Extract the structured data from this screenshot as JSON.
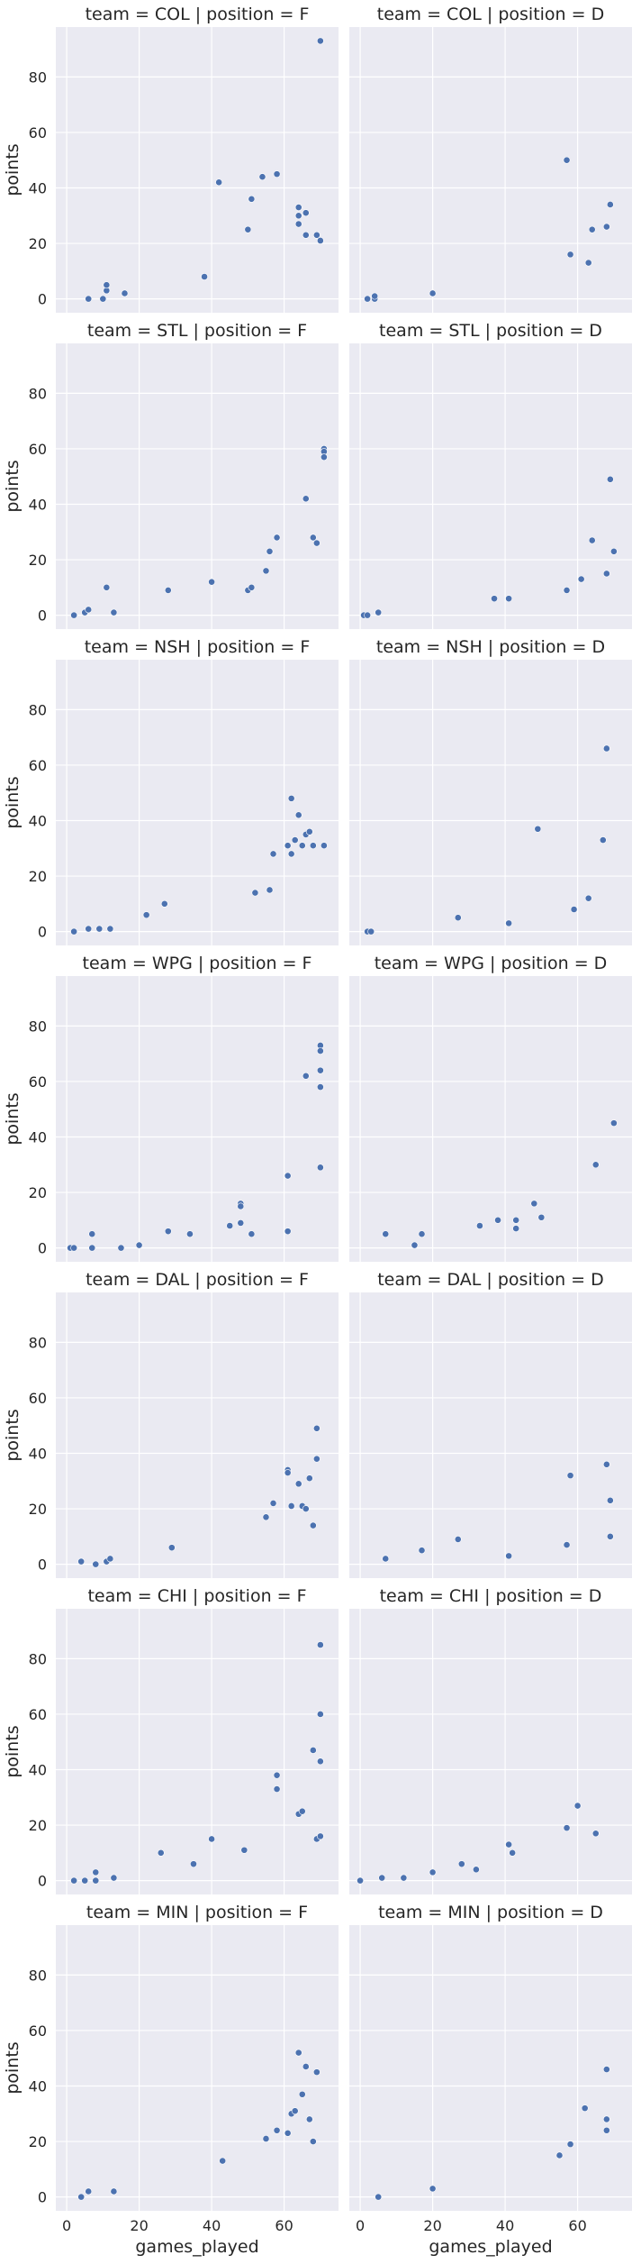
{
  "chart_data": {
    "type": "scatter",
    "xlabel": "games_played",
    "ylabel": "points",
    "xlim": [
      -3,
      75
    ],
    "ylim": [
      -5,
      98
    ],
    "xticks": [
      0,
      20,
      40,
      60
    ],
    "yticks": [
      0,
      20,
      40,
      60,
      80
    ],
    "grid": true,
    "colors": {
      "point": "#4c72b0",
      "panel": "#eaeaf2",
      "grid": "#ffffff"
    },
    "panels": [
      {
        "title": "team = COL | position = F",
        "points": [
          [
            6,
            0
          ],
          [
            10,
            0
          ],
          [
            11,
            3
          ],
          [
            11,
            5
          ],
          [
            16,
            2
          ],
          [
            38,
            8
          ],
          [
            42,
            42
          ],
          [
            50,
            25
          ],
          [
            51,
            36
          ],
          [
            54,
            44
          ],
          [
            58,
            45
          ],
          [
            64,
            33
          ],
          [
            64,
            30
          ],
          [
            64,
            27
          ],
          [
            66,
            31
          ],
          [
            66,
            23
          ],
          [
            69,
            23
          ],
          [
            70,
            93
          ],
          [
            70,
            21
          ]
        ]
      },
      {
        "title": "team = COL | position = D",
        "points": [
          [
            2,
            0
          ],
          [
            4,
            0
          ],
          [
            4,
            1
          ],
          [
            20,
            2
          ],
          [
            57,
            50
          ],
          [
            58,
            16
          ],
          [
            63,
            13
          ],
          [
            64,
            25
          ],
          [
            68,
            26
          ],
          [
            69,
            34
          ]
        ]
      },
      {
        "title": "team = STL | position = F",
        "points": [
          [
            2,
            0
          ],
          [
            5,
            1
          ],
          [
            6,
            2
          ],
          [
            11,
            10
          ],
          [
            13,
            1
          ],
          [
            28,
            9
          ],
          [
            40,
            12
          ],
          [
            50,
            9
          ],
          [
            51,
            10
          ],
          [
            55,
            16
          ],
          [
            56,
            23
          ],
          [
            58,
            28
          ],
          [
            66,
            42
          ],
          [
            68,
            28
          ],
          [
            69,
            26
          ],
          [
            71,
            60
          ],
          [
            71,
            59
          ],
          [
            71,
            57
          ]
        ]
      },
      {
        "title": "team = STL | position = D",
        "points": [
          [
            1,
            0
          ],
          [
            2,
            0
          ],
          [
            5,
            1
          ],
          [
            37,
            6
          ],
          [
            41,
            6
          ],
          [
            57,
            9
          ],
          [
            61,
            13
          ],
          [
            64,
            27
          ],
          [
            68,
            15
          ],
          [
            69,
            49
          ],
          [
            70,
            23
          ]
        ]
      },
      {
        "title": "team = NSH | position = F",
        "points": [
          [
            2,
            0
          ],
          [
            6,
            1
          ],
          [
            9,
            1
          ],
          [
            12,
            1
          ],
          [
            22,
            6
          ],
          [
            27,
            10
          ],
          [
            52,
            14
          ],
          [
            56,
            15
          ],
          [
            57,
            28
          ],
          [
            61,
            31
          ],
          [
            62,
            48
          ],
          [
            62,
            28
          ],
          [
            63,
            33
          ],
          [
            64,
            42
          ],
          [
            65,
            31
          ],
          [
            66,
            35
          ],
          [
            67,
            36
          ],
          [
            68,
            31
          ],
          [
            71,
            31
          ]
        ]
      },
      {
        "title": "team = NSH | position = D",
        "points": [
          [
            2,
            0
          ],
          [
            3,
            0
          ],
          [
            27,
            5
          ],
          [
            41,
            3
          ],
          [
            49,
            37
          ],
          [
            59,
            8
          ],
          [
            63,
            12
          ],
          [
            67,
            33
          ],
          [
            68,
            66
          ]
        ]
      },
      {
        "title": "team = WPG | position = F",
        "points": [
          [
            1,
            0
          ],
          [
            2,
            0
          ],
          [
            7,
            5
          ],
          [
            7,
            0
          ],
          [
            15,
            0
          ],
          [
            20,
            1
          ],
          [
            28,
            6
          ],
          [
            34,
            5
          ],
          [
            45,
            8
          ],
          [
            48,
            16
          ],
          [
            48,
            15
          ],
          [
            48,
            9
          ],
          [
            51,
            5
          ],
          [
            61,
            26
          ],
          [
            61,
            6
          ],
          [
            66,
            62
          ],
          [
            70,
            73
          ],
          [
            70,
            71
          ],
          [
            70,
            64
          ],
          [
            70,
            58
          ],
          [
            70,
            29
          ]
        ]
      },
      {
        "title": "team = WPG | position = D",
        "points": [
          [
            7,
            5
          ],
          [
            15,
            1
          ],
          [
            17,
            5
          ],
          [
            33,
            8
          ],
          [
            38,
            10
          ],
          [
            43,
            10
          ],
          [
            43,
            7
          ],
          [
            48,
            16
          ],
          [
            50,
            11
          ],
          [
            65,
            30
          ],
          [
            70,
            45
          ]
        ]
      },
      {
        "title": "team = DAL | position = F",
        "points": [
          [
            4,
            1
          ],
          [
            8,
            0
          ],
          [
            11,
            1
          ],
          [
            12,
            2
          ],
          [
            29,
            6
          ],
          [
            55,
            17
          ],
          [
            57,
            22
          ],
          [
            61,
            34
          ],
          [
            61,
            33
          ],
          [
            62,
            21
          ],
          [
            64,
            29
          ],
          [
            65,
            21
          ],
          [
            66,
            20
          ],
          [
            67,
            31
          ],
          [
            68,
            14
          ],
          [
            69,
            49
          ],
          [
            69,
            38
          ]
        ]
      },
      {
        "title": "team = DAL | position = D",
        "points": [
          [
            7,
            2
          ],
          [
            17,
            5
          ],
          [
            27,
            9
          ],
          [
            41,
            3
          ],
          [
            57,
            7
          ],
          [
            58,
            32
          ],
          [
            68,
            36
          ],
          [
            69,
            23
          ],
          [
            69,
            10
          ]
        ]
      },
      {
        "title": "team = CHI | position = F",
        "points": [
          [
            2,
            0
          ],
          [
            5,
            0
          ],
          [
            8,
            3
          ],
          [
            8,
            0
          ],
          [
            13,
            1
          ],
          [
            26,
            10
          ],
          [
            35,
            6
          ],
          [
            40,
            15
          ],
          [
            49,
            11
          ],
          [
            58,
            38
          ],
          [
            58,
            33
          ],
          [
            64,
            24
          ],
          [
            65,
            25
          ],
          [
            68,
            47
          ],
          [
            69,
            15
          ],
          [
            70,
            85
          ],
          [
            70,
            60
          ],
          [
            70,
            43
          ],
          [
            70,
            16
          ]
        ]
      },
      {
        "title": "team = CHI | position = D",
        "points": [
          [
            0,
            0
          ],
          [
            6,
            1
          ],
          [
            12,
            1
          ],
          [
            20,
            3
          ],
          [
            28,
            6
          ],
          [
            32,
            4
          ],
          [
            41,
            13
          ],
          [
            42,
            10
          ],
          [
            57,
            19
          ],
          [
            60,
            27
          ],
          [
            65,
            17
          ]
        ]
      },
      {
        "title": "team = MIN | position = F",
        "points": [
          [
            4,
            0
          ],
          [
            6,
            2
          ],
          [
            13,
            2
          ],
          [
            43,
            13
          ],
          [
            55,
            21
          ],
          [
            58,
            24
          ],
          [
            61,
            23
          ],
          [
            62,
            30
          ],
          [
            63,
            31
          ],
          [
            64,
            52
          ],
          [
            65,
            37
          ],
          [
            66,
            47
          ],
          [
            67,
            28
          ],
          [
            68,
            20
          ],
          [
            69,
            45
          ]
        ]
      },
      {
        "title": "team = MIN | position = D",
        "points": [
          [
            5,
            0
          ],
          [
            20,
            3
          ],
          [
            55,
            15
          ],
          [
            58,
            19
          ],
          [
            62,
            32
          ],
          [
            68,
            46
          ],
          [
            68,
            28
          ],
          [
            68,
            24
          ]
        ]
      }
    ]
  }
}
